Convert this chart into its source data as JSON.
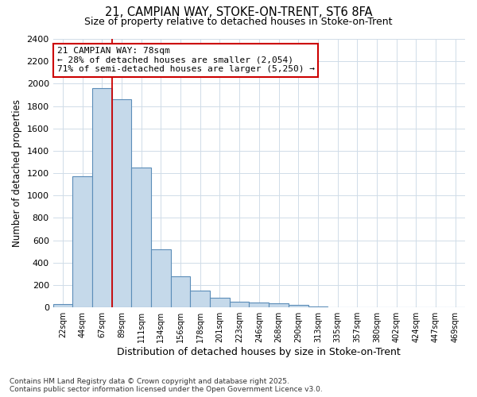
{
  "title1": "21, CAMPIAN WAY, STOKE-ON-TRENT, ST6 8FA",
  "title2": "Size of property relative to detached houses in Stoke-on-Trent",
  "xlabel": "Distribution of detached houses by size in Stoke-on-Trent",
  "ylabel": "Number of detached properties",
  "categories": [
    "22sqm",
    "44sqm",
    "67sqm",
    "89sqm",
    "111sqm",
    "134sqm",
    "156sqm",
    "178sqm",
    "201sqm",
    "223sqm",
    "246sqm",
    "268sqm",
    "290sqm",
    "313sqm",
    "335sqm",
    "357sqm",
    "380sqm",
    "402sqm",
    "424sqm",
    "447sqm",
    "469sqm"
  ],
  "values": [
    30,
    1170,
    1960,
    1860,
    1250,
    520,
    275,
    150,
    90,
    50,
    45,
    40,
    20,
    8,
    4,
    3,
    2,
    1,
    1,
    1,
    1
  ],
  "bar_color": "#c5d9ea",
  "bar_edge_color": "#5b8db8",
  "vline_x": 3.0,
  "vline_color": "#cc0000",
  "annotation_text": "21 CAMPIAN WAY: 78sqm\n← 28% of detached houses are smaller (2,054)\n71% of semi-detached houses are larger (5,250) →",
  "annotation_box_color": "#ffffff",
  "annotation_box_edge": "#cc0000",
  "ylim": [
    0,
    2400
  ],
  "yticks": [
    0,
    200,
    400,
    600,
    800,
    1000,
    1200,
    1400,
    1600,
    1800,
    2000,
    2200,
    2400
  ],
  "footer1": "Contains HM Land Registry data © Crown copyright and database right 2025.",
  "footer2": "Contains public sector information licensed under the Open Government Licence v3.0.",
  "bg_color": "#ffffff",
  "grid_color": "#d0dce8"
}
